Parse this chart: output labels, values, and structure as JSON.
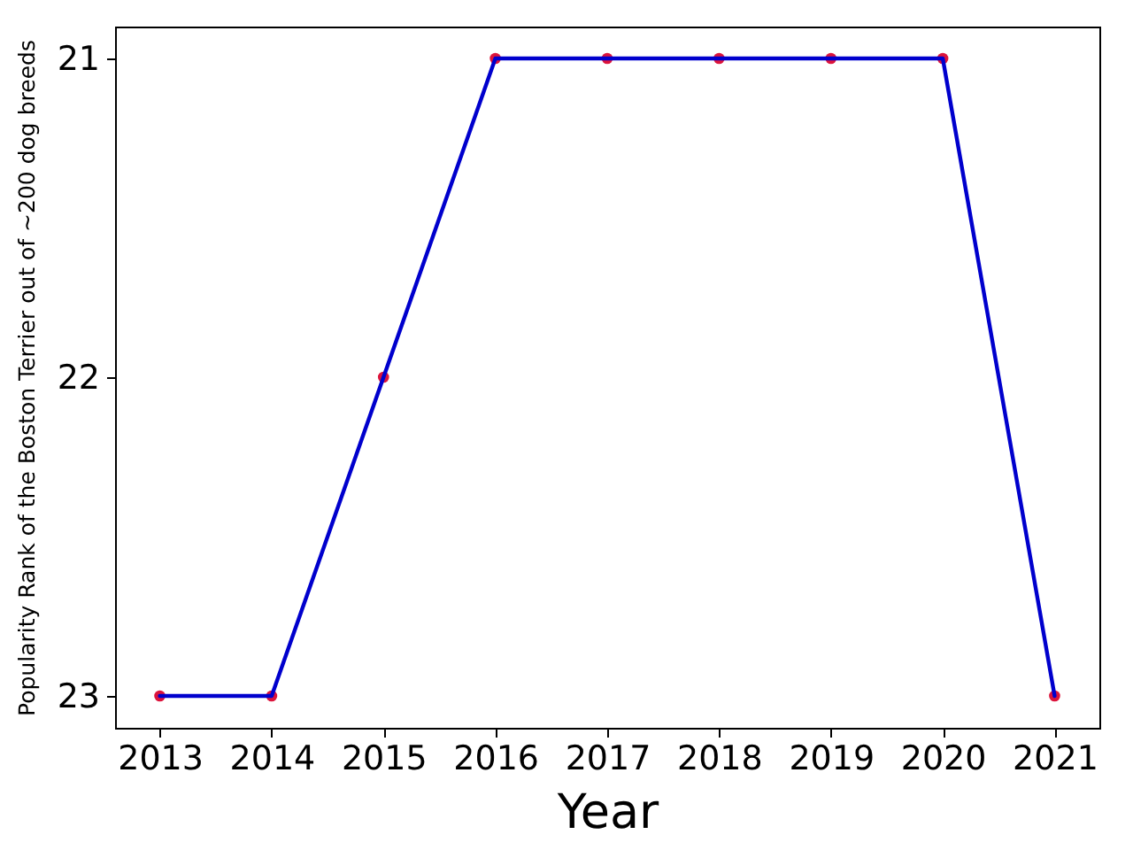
{
  "chart_data": {
    "type": "line",
    "xlabel": "Year",
    "ylabel": "Popularity Rank of the Boston Terrier out of ~200 dog breeds",
    "x": [
      2013,
      2014,
      2015,
      2016,
      2017,
      2018,
      2019,
      2020,
      2021
    ],
    "series": [
      {
        "type": "scatter",
        "color": "#dc143c",
        "marker": "circle",
        "values": [
          23,
          23,
          22,
          21,
          21,
          21,
          21,
          21,
          23
        ]
      },
      {
        "color": "#0000cd",
        "values": [
          23,
          23,
          22,
          21,
          21,
          21,
          21,
          21,
          23
        ]
      }
    ],
    "xlim": [
      2012.6,
      2021.4
    ],
    "xticks": [
      2013,
      2014,
      2015,
      2016,
      2017,
      2018,
      2019,
      2020,
      2021
    ],
    "ylim": [
      23.1,
      20.9
    ],
    "yticks": [
      21,
      22,
      23
    ]
  }
}
